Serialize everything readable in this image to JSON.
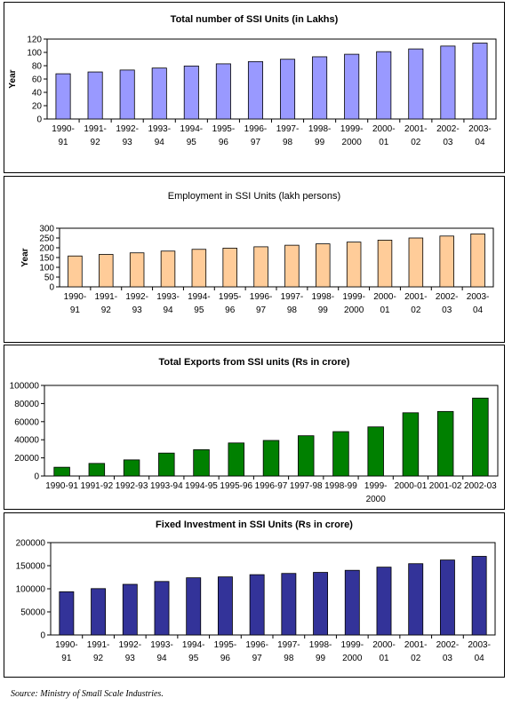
{
  "charts": [
    {
      "type": "bar",
      "title": "Total number of SSI Units (in Lakhs)",
      "title_bold": true,
      "ylabel": "Year",
      "xlabel": "",
      "categories": [
        [
          "1990-",
          "91"
        ],
        [
          "1991-",
          "92"
        ],
        [
          "1992-",
          "93"
        ],
        [
          "1993-",
          "94"
        ],
        [
          "1994-",
          "95"
        ],
        [
          "1995-",
          "96"
        ],
        [
          "1996-",
          "97"
        ],
        [
          "1997-",
          "98"
        ],
        [
          "1998-",
          "99"
        ],
        [
          "1999-",
          "2000"
        ],
        [
          "2000-",
          "01"
        ],
        [
          "2001-",
          "02"
        ],
        [
          "2002-",
          "03"
        ],
        [
          "2003-",
          "04"
        ]
      ],
      "values": [
        67.9,
        70.6,
        73.5,
        76.5,
        79.6,
        82.8,
        86.2,
        89.7,
        93.4,
        97.2,
        101.1,
        105.2,
        109.5,
        114.0
      ],
      "ylim": [
        0,
        120
      ],
      "yticks": [
        0,
        20,
        40,
        60,
        80,
        100,
        120
      ],
      "grid": false,
      "legend": "none",
      "bar_color": "#9999ff"
    },
    {
      "type": "bar",
      "title": "Employment in SSI Units (lakh persons)",
      "title_bold": false,
      "ylabel": "Year",
      "xlabel": "",
      "categories": [
        [
          "1990-",
          "91"
        ],
        [
          "1991-",
          "92"
        ],
        [
          "1992-",
          "93"
        ],
        [
          "1993-",
          "94"
        ],
        [
          "1994-",
          "95"
        ],
        [
          "1995-",
          "96"
        ],
        [
          "1996-",
          "97"
        ],
        [
          "1997-",
          "98"
        ],
        [
          "1998-",
          "99"
        ],
        [
          "1999-",
          "2000"
        ],
        [
          "2000-",
          "01"
        ],
        [
          "2001-",
          "02"
        ],
        [
          "2002-",
          "03"
        ],
        [
          "2003-",
          "04"
        ]
      ],
      "values": [
        158,
        166,
        174,
        183,
        192,
        198,
        205,
        213,
        220,
        229,
        239,
        250,
        260,
        271
      ],
      "ylim": [
        0,
        300
      ],
      "yticks": [
        0,
        50,
        100,
        150,
        200,
        250,
        300
      ],
      "grid": false,
      "legend": "none",
      "bar_color": "#ffcc99"
    },
    {
      "type": "bar",
      "title": "Total Exports from SSI units (Rs in crore)",
      "title_bold": true,
      "ylabel": "",
      "xlabel": "",
      "categories": [
        [
          "1990-91"
        ],
        [
          "1991-92"
        ],
        [
          "1992-93"
        ],
        [
          "1993-94"
        ],
        [
          "1994-95"
        ],
        [
          "1995-96"
        ],
        [
          "1996-97"
        ],
        [
          "1997-98"
        ],
        [
          "1998-99"
        ],
        [
          "1999-",
          "2000"
        ],
        [
          "2000-01"
        ],
        [
          "2001-02"
        ],
        [
          "2002-03"
        ]
      ],
      "values": [
        9664,
        13883,
        17784,
        25307,
        29068,
        36470,
        39248,
        44442,
        48979,
        54200,
        69797,
        71244,
        86013
      ],
      "ylim": [
        0,
        100000
      ],
      "yticks": [
        0,
        20000,
        40000,
        60000,
        80000,
        100000
      ],
      "grid": false,
      "legend": "none",
      "bar_color": "#008000"
    },
    {
      "type": "bar",
      "title": "Fixed Investment in SSI Units  (Rs in crore)",
      "title_bold": true,
      "ylabel": "",
      "xlabel": "",
      "categories": [
        [
          "1990-",
          "91"
        ],
        [
          "1991-",
          "92"
        ],
        [
          "1992-",
          "93"
        ],
        [
          "1993-",
          "94"
        ],
        [
          "1994-",
          "95"
        ],
        [
          "1995-",
          "96"
        ],
        [
          "1996-",
          "97"
        ],
        [
          "1997-",
          "98"
        ],
        [
          "1998-",
          "99"
        ],
        [
          "1999-",
          "2000"
        ],
        [
          "2000-",
          "01"
        ],
        [
          "2001-",
          "02"
        ],
        [
          "2002-",
          "03"
        ],
        [
          "2003-",
          "04"
        ]
      ],
      "values": [
        93555,
        100351,
        109623,
        115795,
        123790,
        125750,
        130560,
        133242,
        135482,
        139982,
        146845,
        154349,
        162317,
        170219
      ],
      "ylim": [
        0,
        200000
      ],
      "yticks": [
        0,
        50000,
        100000,
        150000,
        200000
      ],
      "grid": false,
      "legend": "none",
      "bar_color": "#333399"
    }
  ],
  "source": "Source: Ministry of Small Scale Industries."
}
